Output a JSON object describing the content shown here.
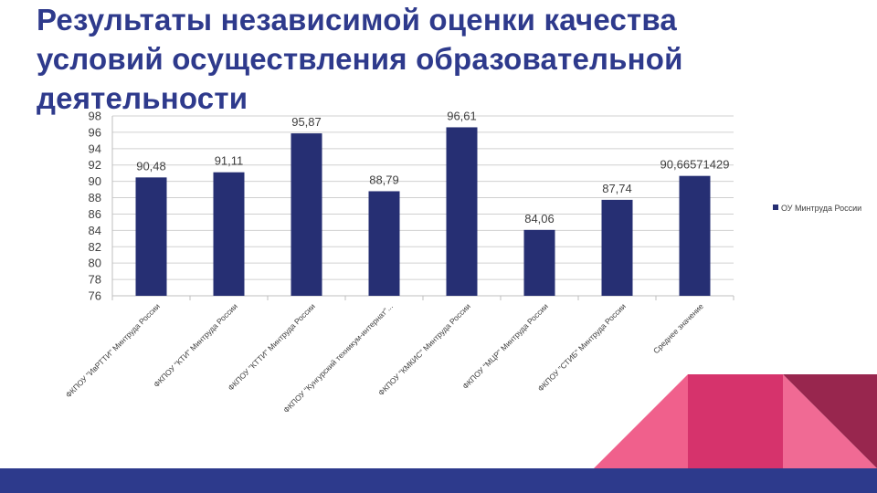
{
  "slide": {
    "title_lines": [
      "Результаты независимой оценки качества",
      "условий осуществления образовательной",
      "деятельности"
    ]
  },
  "chart_data": {
    "type": "bar",
    "categories": [
      "ФКПОУ \"ИвРТТИ\" Минтруда России",
      "ФКПОУ \"КТИ\" Минтруда России",
      "ФКПОУ \"КТТИ\" Минтруда России",
      "ФКПОУ \"Кунгурский техникум-интернат\"...",
      "ФКПОУ \"КМКИС\" Минтруда России",
      "ФКПОУ \"МЦР\" Минтруда России",
      "ФКПОУ \"СТИБ\" Минтруда России",
      "Среднее значение"
    ],
    "series": [
      {
        "name": "ОУ Минтруда России",
        "values": [
          90.48,
          91.11,
          95.87,
          88.79,
          96.61,
          84.06,
          87.74,
          90.66571429
        ],
        "labels": [
          "90,48",
          "91,11",
          "95,87",
          "88,79",
          "96,61",
          "84,06",
          "87,74",
          "90,66571429"
        ]
      }
    ],
    "ylim": [
      76,
      98
    ],
    "yticks": [
      76,
      78,
      80,
      82,
      84,
      86,
      88,
      90,
      92,
      94,
      96,
      98
    ],
    "grid": true,
    "legend_position": "right",
    "colors": {
      "bar": "#262F73",
      "grid": "#D0D0D0",
      "axis_text": "#404040"
    }
  },
  "theme": {
    "title_color": "#2E3A8C",
    "footer_color": "#2D3A8C",
    "deco_colors": [
      "#F0608C",
      "#D6336C",
      "#98264E"
    ]
  }
}
